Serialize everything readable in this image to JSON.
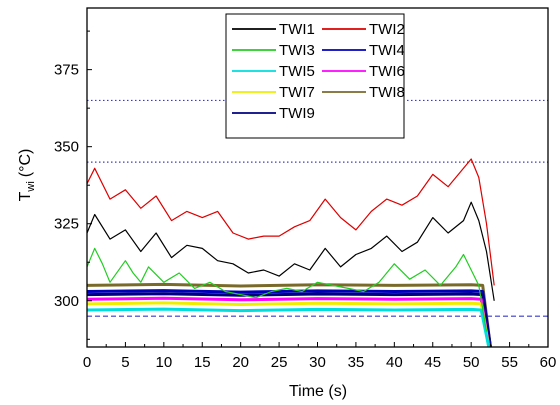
{
  "chart_data": {
    "type": "line",
    "xlabel": "Time (s)",
    "ylabel_main": "T",
    "ylabel_sub": "wi",
    "ylabel_unit": "(°C)",
    "xlim": [
      0,
      60
    ],
    "ylim": [
      285,
      395
    ],
    "x_ticks": [
      0,
      5,
      10,
      15,
      20,
      25,
      30,
      35,
      40,
      45,
      50,
      55,
      60
    ],
    "y_ticks": [
      300,
      325,
      350,
      375
    ],
    "grid": false,
    "legend_position": "top-center",
    "reference_lines": [
      {
        "y": 365,
        "style": "dotted",
        "color": "#3a3acc"
      },
      {
        "y": 345,
        "style": "dotted",
        "color": "#3a3acc"
      },
      {
        "y": 295,
        "style": "dashed",
        "color": "#3a3acc"
      }
    ],
    "series": [
      {
        "name": "TWI1",
        "color": "#000000",
        "x": [
          0,
          1,
          3,
          5,
          7,
          9,
          11,
          13,
          15,
          17,
          19,
          21,
          23,
          25,
          27,
          29,
          31,
          33,
          35,
          37,
          39,
          41,
          43,
          45,
          47,
          49,
          50,
          51,
          52,
          53
        ],
        "y": [
          322,
          328,
          320,
          323,
          316,
          322,
          314,
          318,
          317,
          313,
          312,
          309,
          310,
          308,
          312,
          310,
          317,
          311,
          315,
          317,
          321,
          316,
          319,
          327,
          322,
          326,
          332,
          326,
          316,
          300
        ]
      },
      {
        "name": "TWI2",
        "color": "#dd0000",
        "x": [
          0,
          1,
          3,
          5,
          7,
          9,
          11,
          13,
          15,
          17,
          19,
          21,
          23,
          25,
          27,
          29,
          31,
          33,
          35,
          37,
          39,
          41,
          43,
          45,
          47,
          49,
          50,
          51,
          52,
          53
        ],
        "y": [
          338,
          343,
          333,
          336,
          330,
          334,
          326,
          329,
          327,
          329,
          322,
          320,
          321,
          321,
          324,
          326,
          333,
          327,
          323,
          329,
          333,
          331,
          334,
          341,
          337,
          343,
          346,
          340,
          325,
          305
        ]
      },
      {
        "name": "TWI3",
        "color": "#22cc22",
        "x": [
          0,
          1,
          2,
          3,
          5,
          6,
          7,
          8,
          10,
          12,
          14,
          16,
          18,
          20,
          22,
          24,
          26,
          28,
          30,
          32,
          34,
          36,
          38,
          40,
          42,
          44,
          46,
          48,
          49,
          50,
          51,
          52
        ],
        "y": [
          311,
          317,
          312,
          306,
          313,
          309,
          306,
          311,
          306,
          309,
          304,
          306,
          303,
          302,
          301,
          303,
          304,
          303,
          306,
          305,
          304,
          303,
          306,
          312,
          307,
          310,
          305,
          311,
          315,
          310,
          305,
          290
        ]
      },
      {
        "name": "TWI4",
        "color": "#0000bb",
        "x": [
          0,
          10,
          20,
          30,
          40,
          50,
          51.5,
          52.5
        ],
        "y": [
          303,
          303.3,
          302.8,
          303.2,
          303,
          303.2,
          303,
          285
        ]
      },
      {
        "name": "TWI5",
        "color": "#00dddd",
        "x": [
          0,
          10,
          20,
          30,
          40,
          50,
          51.3,
          52.3
        ],
        "y": [
          297,
          297.3,
          296.8,
          297.2,
          297,
          297.2,
          297,
          285
        ]
      },
      {
        "name": "TWI6",
        "color": "#ff00ff",
        "x": [
          0,
          10,
          20,
          30,
          40,
          50,
          51.3,
          52.3
        ],
        "y": [
          300.5,
          300.8,
          300.3,
          300.7,
          300.5,
          300.7,
          300.5,
          285
        ]
      },
      {
        "name": "TWI7",
        "color": "#eeee00",
        "x": [
          0,
          10,
          20,
          30,
          40,
          50,
          51.3,
          52.3
        ],
        "y": [
          299,
          299.3,
          298.8,
          299.2,
          299,
          299.2,
          299,
          285
        ]
      },
      {
        "name": "TWI8",
        "color": "#7a6a2a",
        "x": [
          0,
          10,
          20,
          30,
          40,
          50,
          51.5,
          52.5
        ],
        "y": [
          305,
          305.3,
          304.8,
          305.2,
          305,
          305.2,
          305,
          285
        ]
      },
      {
        "name": "TWI9",
        "color": "#000080",
        "x": [
          0,
          10,
          20,
          30,
          40,
          50,
          51.5,
          52.5
        ],
        "y": [
          302,
          302.3,
          301.8,
          302.2,
          302,
          302.2,
          302,
          285
        ]
      }
    ]
  }
}
